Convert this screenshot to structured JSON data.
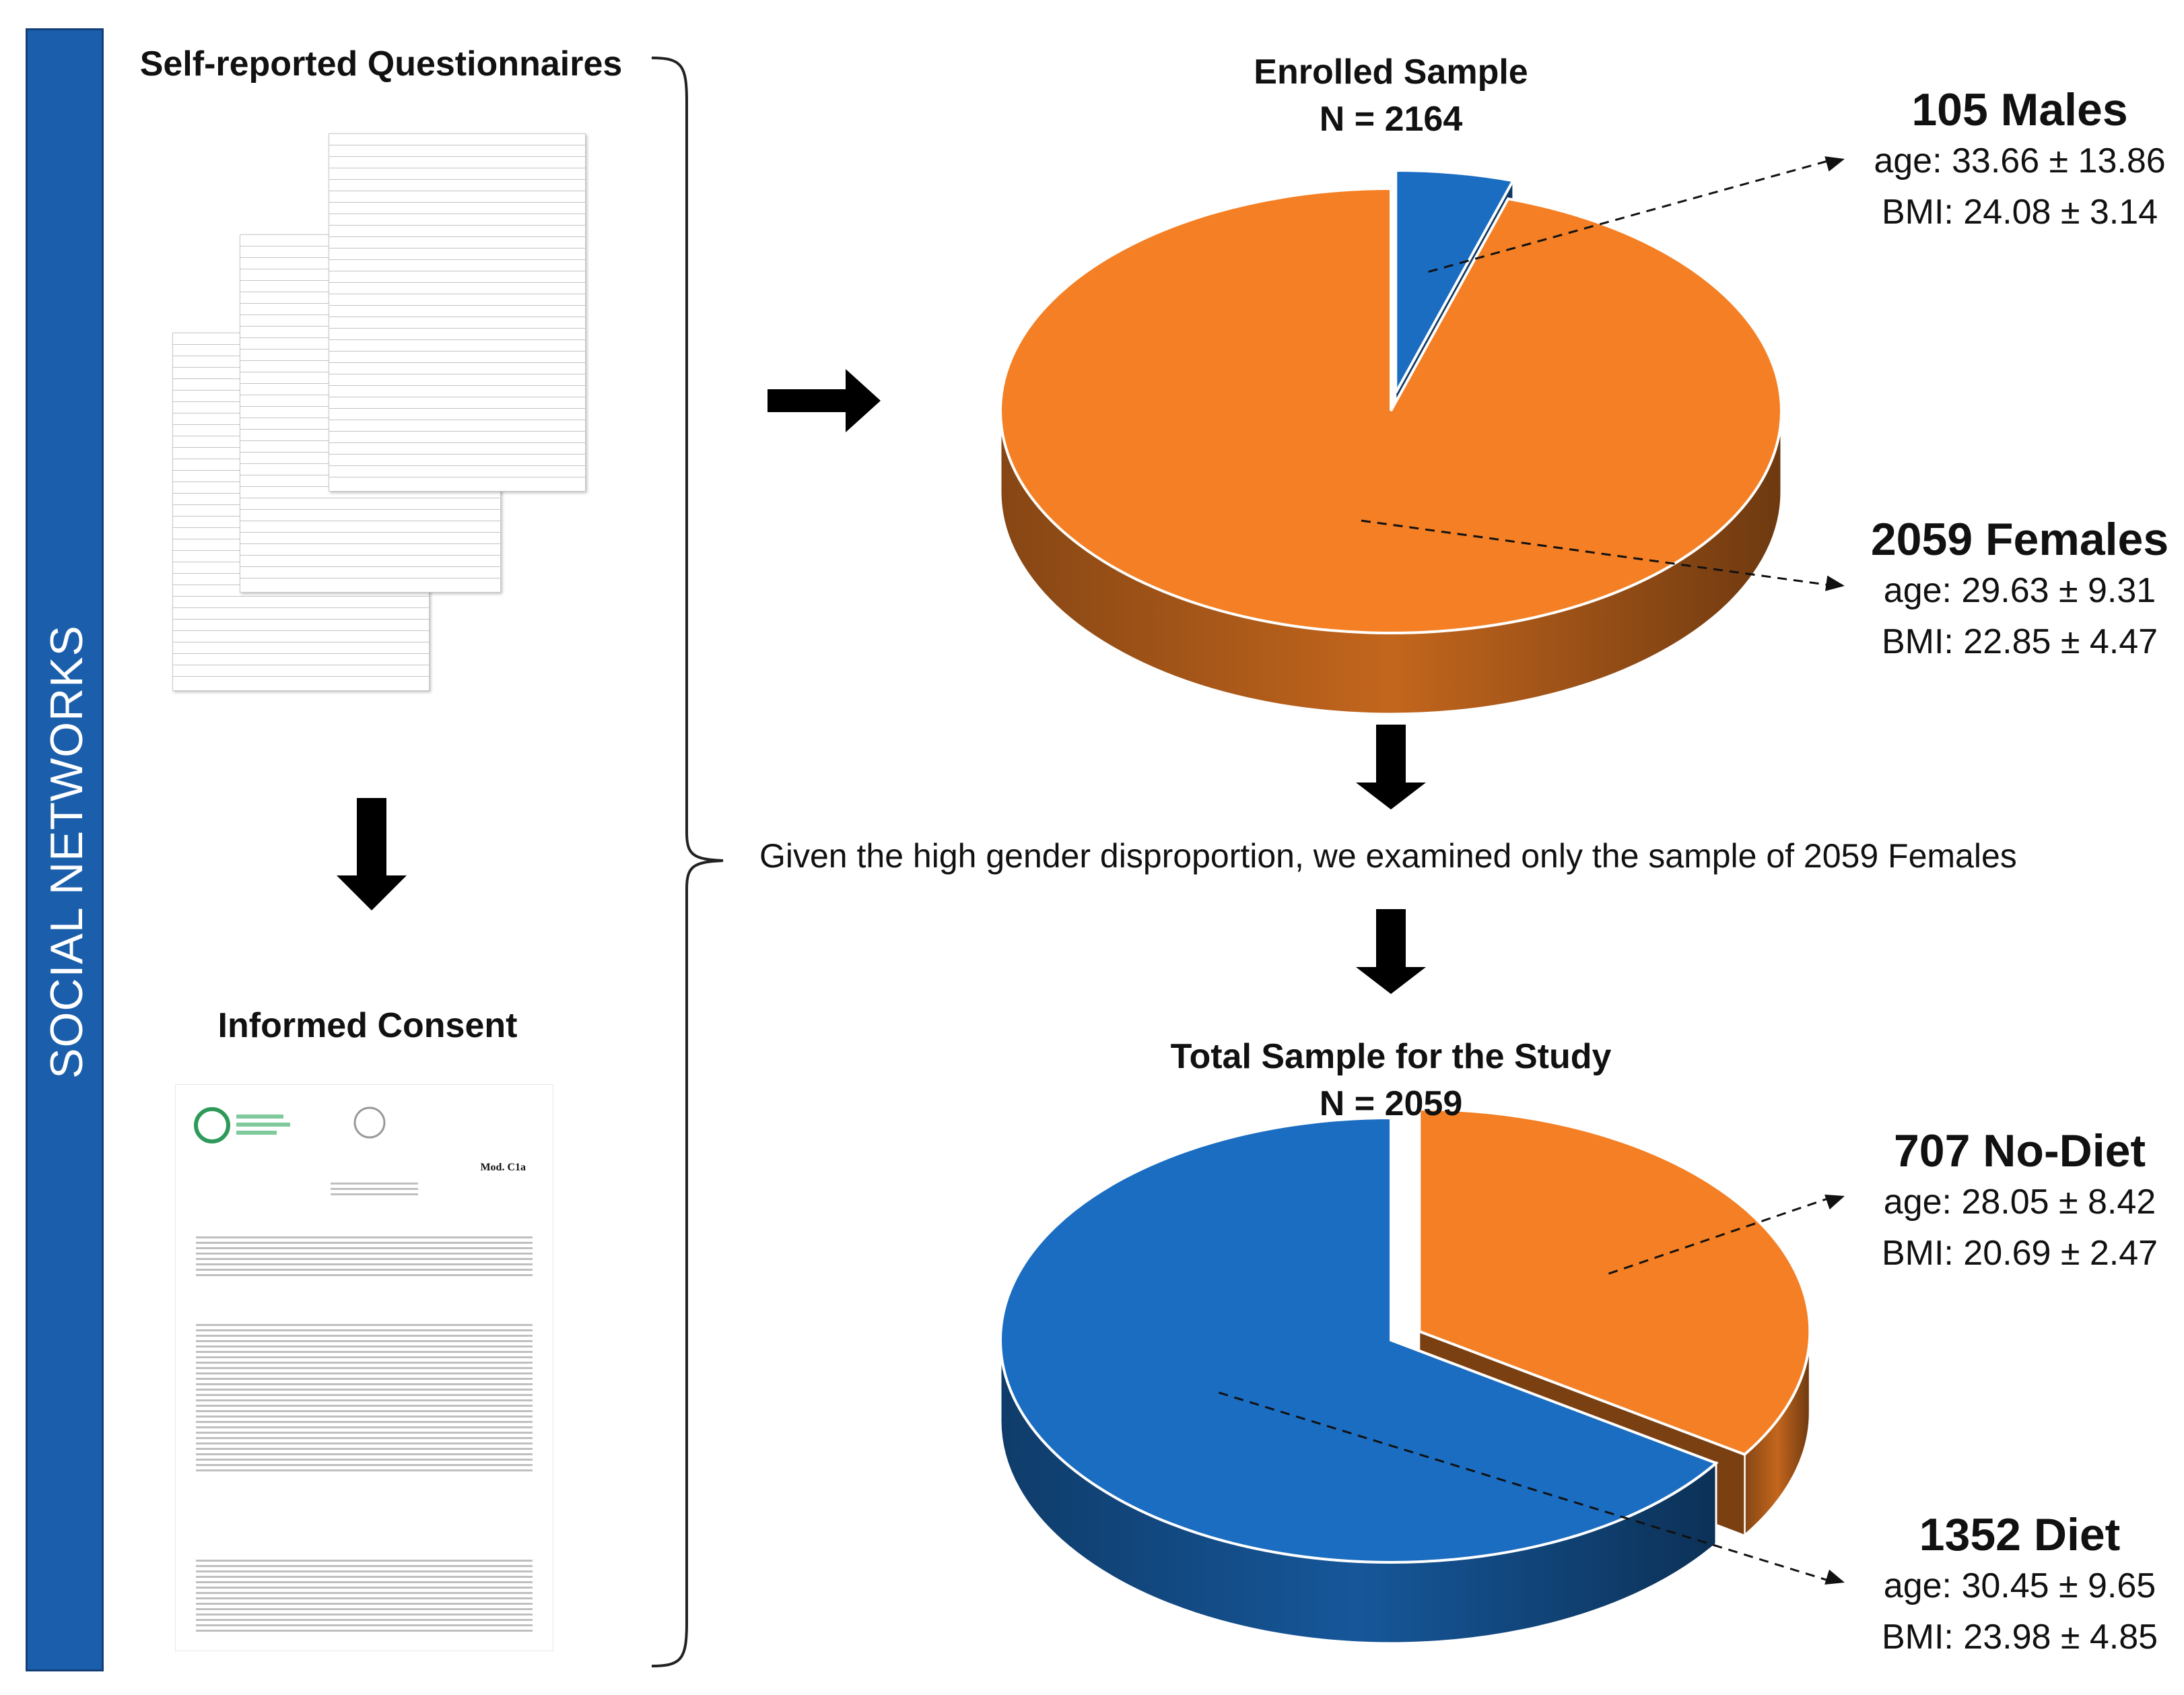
{
  "side_banner": {
    "label": "SOCIAL NETWORKS"
  },
  "questionnaires": {
    "title": "Self-reported Questionnaires"
  },
  "consent": {
    "title": "Informed Consent",
    "form_code": "Mod. C1a"
  },
  "enrolled": {
    "title": "Enrolled Sample",
    "n_label": "N = 2164",
    "males": {
      "label": "105 Males",
      "age": "age: 33.66 ± 13.86",
      "bmi": "BMI: 24.08 ± 3.14"
    },
    "females": {
      "label": "2059 Females",
      "age": "age: 29.63 ± 9.31",
      "bmi": "BMI: 22.85 ± 4.47"
    }
  },
  "note": "Given the high gender disproportion, we examined only the sample of 2059 Females",
  "study": {
    "title": "Total Sample for the Study",
    "n_label": "N = 2059",
    "no_diet": {
      "label": "707 No-Diet",
      "age": "age: 28.05 ± 8.42",
      "bmi": "BMI: 20.69 ± 2.47"
    },
    "diet": {
      "label": "1352 Diet",
      "age": "age: 30.45 ± 9.65",
      "bmi": "BMI: 23.98 ± 4.85"
    }
  },
  "chart_data": [
    {
      "type": "pie",
      "title": "Enrolled Sample",
      "categories": [
        "Males",
        "Females"
      ],
      "values": [
        105,
        2059
      ],
      "colors": [
        "#1b6dc1",
        "#f47f24"
      ],
      "exploded": "Males"
    },
    {
      "type": "pie",
      "title": "Total Sample for the Study",
      "categories": [
        "No-Diet",
        "Diet"
      ],
      "values": [
        707,
        1352
      ],
      "colors": [
        "#f47f24",
        "#1b6dc1"
      ],
      "exploded": "No-Diet"
    }
  ]
}
